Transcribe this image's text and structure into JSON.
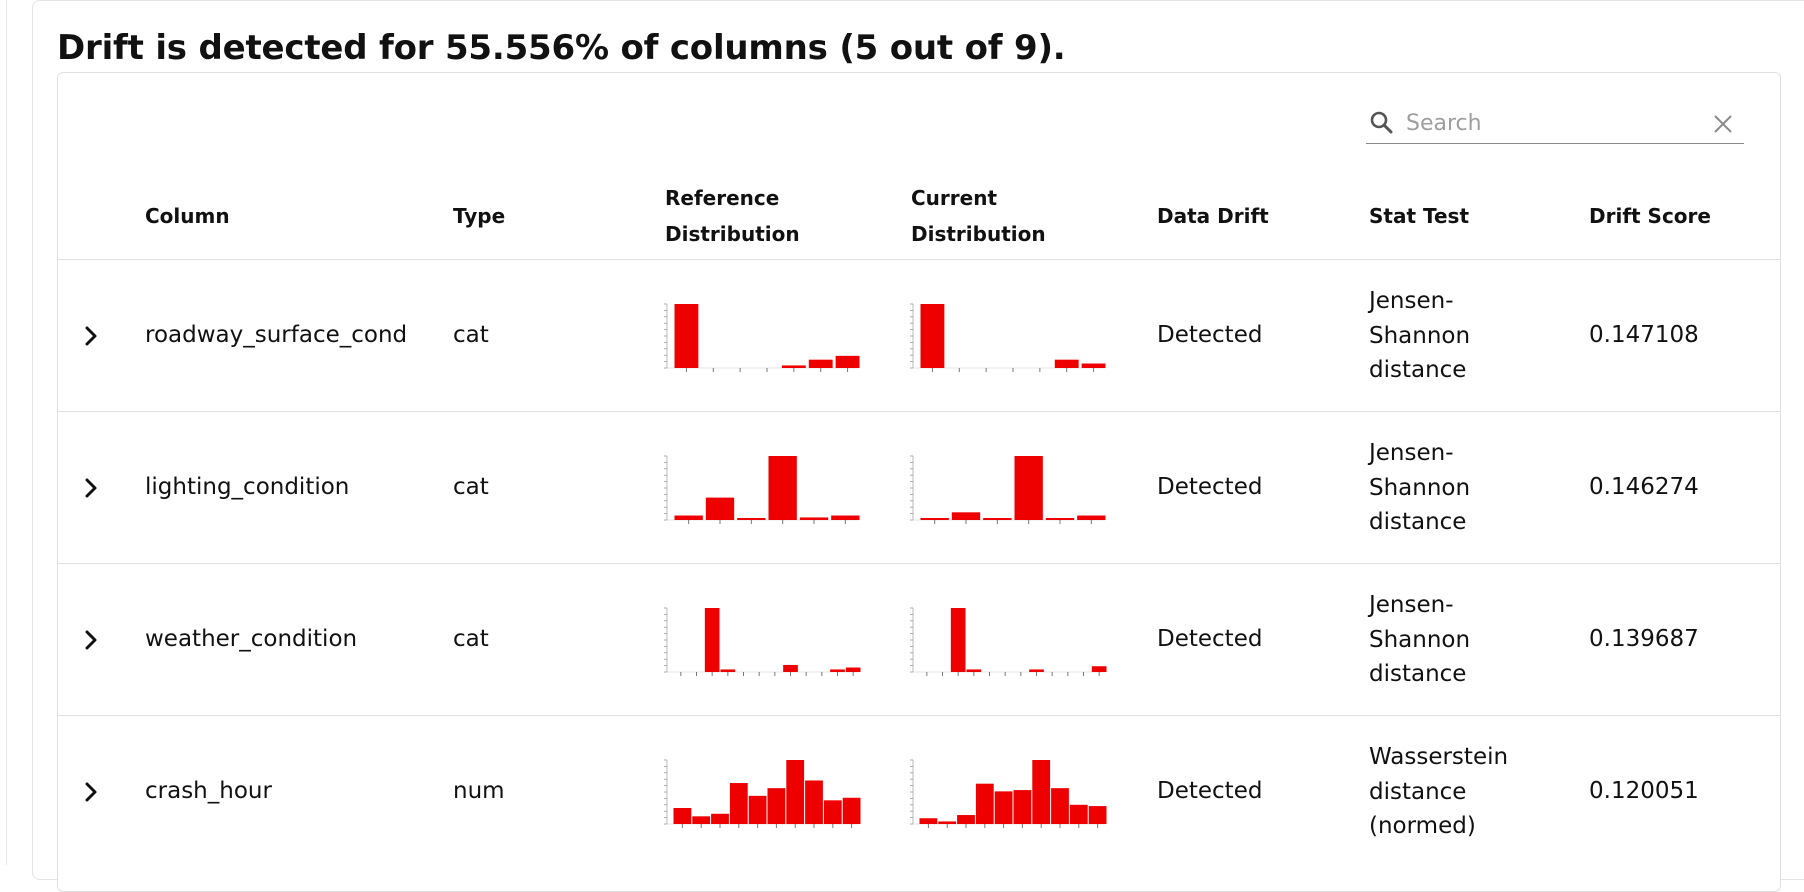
{
  "title": "Drift is detected for 55.556% of columns (5 out of 9).",
  "search": {
    "placeholder": "Search",
    "icon": "search-icon",
    "clear_icon": "close-icon"
  },
  "bar_color": "#ee0000",
  "headers": {
    "column": "Column",
    "type": "Type",
    "reference_line1": "Reference",
    "reference_line2": "Distribution",
    "current_line1": "Current",
    "current_line2": "Distribution",
    "data_drift": "Data Drift",
    "stat_test": "Stat Test",
    "drift_score": "Drift Score"
  },
  "rows": [
    {
      "column": "roadway_surface_cond",
      "type": "cat",
      "drift": "Detected",
      "stat_lines": [
        "Jensen-",
        "Shannon",
        "distance"
      ],
      "score": "0.147108",
      "ref": [
        1,
        0,
        0,
        0,
        0.04,
        0.13,
        0.19
      ],
      "cur": [
        1,
        0,
        0,
        0,
        0,
        0.13,
        0.07
      ]
    },
    {
      "column": "lighting_condition",
      "type": "cat",
      "drift": "Detected",
      "stat_lines": [
        "Jensen-",
        "Shannon",
        "distance"
      ],
      "score": "0.146274",
      "ref": [
        0.07,
        0.35,
        0.02,
        1,
        0.04,
        0.07
      ],
      "cur": [
        0.02,
        0.12,
        0.02,
        1,
        0.02,
        0.07
      ]
    },
    {
      "column": "weather_condition",
      "type": "cat",
      "drift": "Detected",
      "stat_lines": [
        "Jensen-",
        "Shannon",
        "distance"
      ],
      "score": "0.139687",
      "ref": [
        0,
        0,
        1,
        0.04,
        0,
        0,
        0,
        0.11,
        0,
        0,
        0.04,
        0.07
      ],
      "cur": [
        0,
        0,
        1,
        0.04,
        0,
        0,
        0,
        0.04,
        0,
        0,
        0,
        0.09
      ]
    },
    {
      "column": "crash_hour",
      "type": "num",
      "drift": "Detected",
      "stat_lines": [
        "Wasserstein",
        "distance",
        "(normed)"
      ],
      "score": "0.120051",
      "ref": [
        0.25,
        0.12,
        0.16,
        0.64,
        0.44,
        0.56,
        1,
        0.68,
        0.37,
        0.41
      ],
      "cur": [
        0.09,
        0.04,
        0.14,
        0.63,
        0.51,
        0.53,
        1,
        0.56,
        0.3,
        0.28
      ]
    }
  ]
}
